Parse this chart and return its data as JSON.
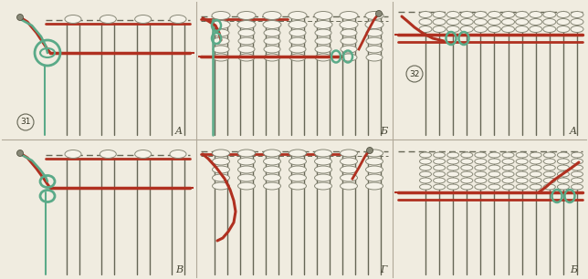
{
  "bg_color": "#f0ece0",
  "panel_bg": "#ede8d8",
  "red_color": "#b03020",
  "teal_color": "#5aaa88",
  "knot_fill": "#f5f2e8",
  "knot_edge": "#888877",
  "cord_color": "#666655",
  "lw_cord": 1.0,
  "lw_thick": 2.2,
  "fig_width": 6.44,
  "fig_height": 3.06,
  "panel_labels": [
    "A",
    "Б",
    "A",
    "В",
    "Г",
    "Б"
  ],
  "circle_labels": [
    "31",
    null,
    "32",
    null,
    null,
    null
  ]
}
